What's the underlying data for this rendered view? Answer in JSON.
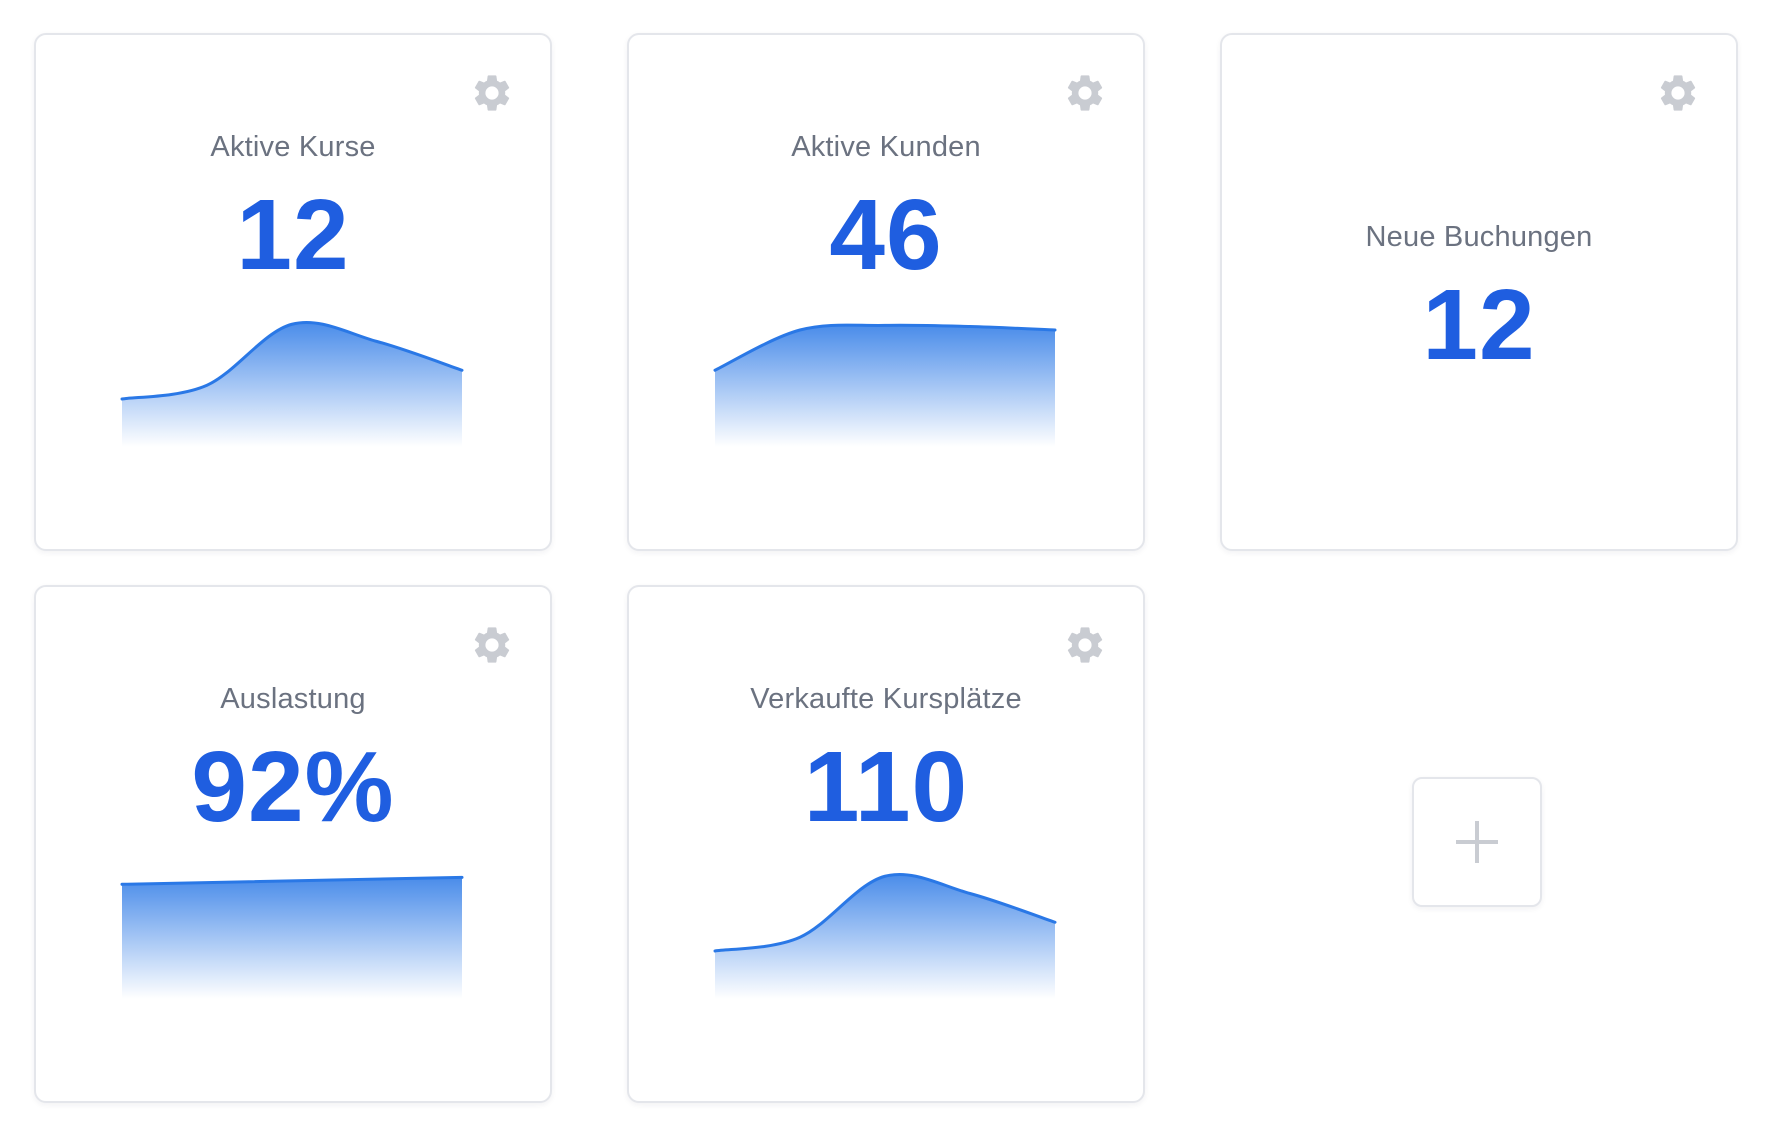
{
  "colors": {
    "accent": "#1f5ee0",
    "spark_line": "#2a78e6",
    "title": "#6b7280",
    "gear": "#c9ccd2",
    "border": "#e4e6eb"
  },
  "icons": {
    "settings": "gear-icon",
    "add": "plus-icon"
  },
  "widgets": [
    {
      "title": "Aktive Kurse",
      "value": "12",
      "has_chart": true
    },
    {
      "title": "Aktive Kunden",
      "value": "46",
      "has_chart": true
    },
    {
      "title": "Neue Buchungen",
      "value": "12",
      "has_chart": false
    },
    {
      "title": "Auslastung",
      "value": "92%",
      "has_chart": true
    },
    {
      "title": "Verkaufte Kursplätze",
      "value": "110",
      "has_chart": true
    }
  ],
  "chart_data": [
    {
      "type": "area",
      "x": [
        0,
        1,
        2,
        3,
        4
      ],
      "values": [
        20,
        32,
        85,
        70,
        45
      ],
      "ylim": [
        0,
        100
      ]
    },
    {
      "type": "area",
      "x": [
        0,
        1,
        2,
        3,
        4
      ],
      "values": [
        45,
        80,
        84,
        83,
        80
      ],
      "ylim": [
        0,
        100
      ]
    },
    {
      "type": "area",
      "x": [
        0,
        1
      ],
      "values": [
        78,
        84
      ],
      "ylim": [
        0,
        100
      ]
    },
    {
      "type": "area",
      "x": [
        0,
        1,
        2,
        3,
        4
      ],
      "values": [
        20,
        32,
        85,
        70,
        45
      ],
      "ylim": [
        0,
        100
      ]
    }
  ]
}
